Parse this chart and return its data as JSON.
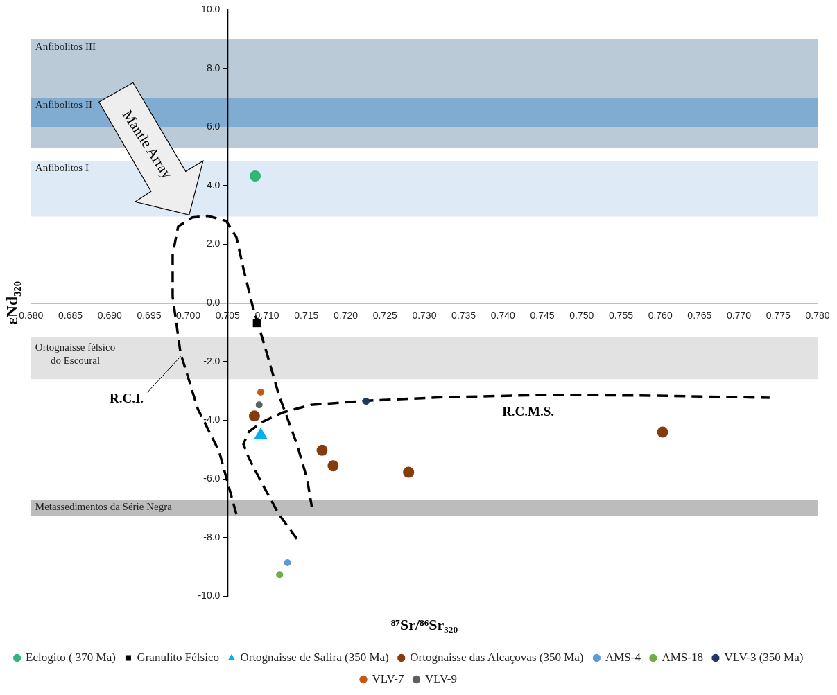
{
  "chart_data": {
    "type": "scatter",
    "xlabel": "⁸⁷Sr/⁸⁶Sr₃₂₀",
    "ylabel": "εNd₃₂₀",
    "xlim": [
      0.68,
      0.78
    ],
    "xticks": [
      {
        "value": 0.68,
        "label": "0.680"
      },
      0.685,
      {
        "value": 0.69,
        "label": "0.690"
      },
      0.695,
      {
        "value": 0.7,
        "label": "0.700"
      },
      0.705,
      {
        "value": 0.71,
        "label": "0.710"
      },
      0.715,
      {
        "value": 0.72,
        "label": "0.720"
      },
      0.725,
      {
        "value": 0.73,
        "label": "0.730"
      },
      0.735,
      {
        "value": 0.74,
        "label": "0.740"
      },
      0.745,
      {
        "value": 0.75,
        "label": "0.750"
      },
      0.755,
      {
        "value": 0.76,
        "label": "0.760"
      },
      0.765,
      {
        "value": 0.77,
        "label": "0.770"
      },
      0.775,
      {
        "value": 0.78,
        "label": "0.780"
      }
    ],
    "ylim": [
      -10,
      10
    ],
    "yticks": [
      {
        "value": -10,
        "label": "-10.0"
      },
      {
        "value": -8,
        "label": "-8.0"
      },
      {
        "value": -6,
        "label": "-6.0"
      },
      {
        "value": -4,
        "label": "-4.0"
      },
      {
        "value": -2,
        "label": "-2.0"
      },
      {
        "value": 0,
        "label": "0.0"
      },
      {
        "value": 2,
        "label": "2.0"
      },
      {
        "value": 4,
        "label": "4.0"
      },
      {
        "value": 6,
        "label": "6.0"
      },
      {
        "value": 8,
        "label": "8.0"
      },
      {
        "value": 10,
        "label": "10.0"
      }
    ],
    "legend": "bottom",
    "series": [
      {
        "name": "Eclogito ( 370 Ma)",
        "color": "#33b47d",
        "marker": "circle",
        "x": [
          0.7085
        ],
        "values": [
          4.33
        ]
      },
      {
        "name": "Granulito Félsico",
        "color": "#000000",
        "marker": "square",
        "x": [
          0.7087
        ],
        "values": [
          -0.69
        ]
      },
      {
        "name": "Ortognaisse de Safira (350 Ma)",
        "color": "#00b0f0",
        "marker": "triangle",
        "x": [
          0.7092
        ],
        "values": [
          -4.5
        ]
      },
      {
        "name": "Ortognaisse das Alcaçovas (350 Ma)",
        "color": "#843c0c",
        "marker": "circle",
        "x": [
          0.7084,
          0.717,
          0.7184,
          0.728,
          0.7603
        ],
        "values": [
          -3.85,
          -5.02,
          -5.55,
          -5.77,
          -4.4
        ]
      },
      {
        "name": "AMS-4",
        "color": "#5b9bd5",
        "marker": "circle",
        "x": [
          0.7126
        ],
        "values": [
          -8.85
        ]
      },
      {
        "name": "AMS-18",
        "color": "#70ad47",
        "marker": "circle",
        "x": [
          0.7116
        ],
        "values": [
          -9.26
        ]
      },
      {
        "name": "VLV-3 (350 Ma)",
        "color": "#203864",
        "marker": "circle",
        "x": [
          0.7226
        ],
        "values": [
          -3.35
        ]
      },
      {
        "name": "VLV-7",
        "color": "#c55a11",
        "marker": "circle",
        "x": [
          0.7092
        ],
        "values": [
          -3.04
        ]
      },
      {
        "name": "VLV-9",
        "color": "#5f5f5f",
        "marker": "circle",
        "x": [
          0.709
        ],
        "values": [
          -3.47
        ]
      },
      {
        "type": "line",
        "color": "#000000",
        "line_style": "dashed",
        "marker": "none",
        "x": [
          0.7061,
          0.7039,
          0.7012,
          0.699,
          0.698,
          0.698,
          0.6987,
          0.7005,
          0.7025,
          0.7048,
          0.7061,
          0.707,
          0.7082,
          0.7097,
          0.7115,
          0.7138,
          0.7151,
          0.7157
        ],
        "values": [
          -7.2,
          -5.05,
          -3.61,
          -1.7,
          0.22,
          1.65,
          2.61,
          2.92,
          2.97,
          2.8,
          2.25,
          1.17,
          -0.14,
          -1.46,
          -3.13,
          -4.81,
          -6.0,
          -6.96
        ]
      },
      {
        "type": "line",
        "color": "#000000",
        "line_style": "dashed",
        "marker": "none",
        "x": [
          0.7138,
          0.7115,
          0.7093,
          0.7077,
          0.707,
          0.7077,
          0.7095,
          0.712,
          0.7156,
          0.7227,
          0.7326,
          0.7461,
          0.7595,
          0.7739
        ],
        "values": [
          -8.04,
          -7.2,
          -6.12,
          -5.29,
          -4.81,
          -4.38,
          -4.04,
          -3.73,
          -3.47,
          -3.33,
          -3.21,
          -3.13,
          -3.16,
          -3.23
        ]
      }
    ],
    "bands": [
      {
        "axis": "y",
        "from": 5.3,
        "to": 9,
        "label": "Anfibolitos III",
        "color": "#bacad7"
      },
      {
        "axis": "y",
        "from": 6,
        "to": 7,
        "label": "Anfibolitos II",
        "color": "#7facd0"
      },
      {
        "axis": "y",
        "from": 2.95,
        "to": 4.85,
        "label": "Anfibolitos I",
        "color": "#deeaf6"
      },
      {
        "axis": "y",
        "from": -2.6,
        "to": -1.17,
        "label": "Ortognaisse félsico\ndo Escoural",
        "color": "#e2e2e2"
      },
      {
        "axis": "y",
        "from": -7.25,
        "to": -6.7,
        "label": "Metassedimentos da Série Negra",
        "color": "#bcbcbc"
      }
    ],
    "annotations": [
      {
        "text": "R.C.I.",
        "x": 0.6992,
        "y": -1.7
      },
      {
        "text": "R.C.M.S.",
        "x": 0.7432,
        "y": -3.16
      },
      {
        "text": "Mantle Array",
        "x": 0.7001,
        "y": 3.0
      }
    ]
  }
}
